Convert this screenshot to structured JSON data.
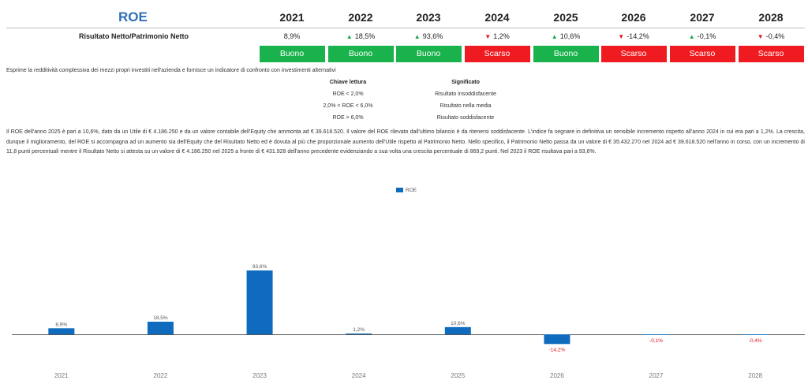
{
  "header": {
    "title": "ROE",
    "years": [
      "2021",
      "2022",
      "2023",
      "2024",
      "2025",
      "2026",
      "2027",
      "2028"
    ]
  },
  "metric": {
    "label": "Risultato Netto/Patrimonio Netto",
    "values": [
      {
        "text": "8,9%",
        "trend": "none"
      },
      {
        "text": "18,5%",
        "trend": "up"
      },
      {
        "text": "93,6%",
        "trend": "up"
      },
      {
        "text": "1,2%",
        "trend": "down"
      },
      {
        "text": "10,6%",
        "trend": "up"
      },
      {
        "text": "-14,2%",
        "trend": "down"
      },
      {
        "text": "-0,1%",
        "trend": "up"
      },
      {
        "text": "-0,4%",
        "trend": "down"
      }
    ],
    "ratings": [
      {
        "text": "Buono",
        "status": "good"
      },
      {
        "text": "Buono",
        "status": "good"
      },
      {
        "text": "Buono",
        "status": "good"
      },
      {
        "text": "Scarso",
        "status": "bad"
      },
      {
        "text": "Buono",
        "status": "good"
      },
      {
        "text": "Scarso",
        "status": "bad"
      },
      {
        "text": "Scarso",
        "status": "bad"
      },
      {
        "text": "Scarso",
        "status": "bad"
      }
    ]
  },
  "colors": {
    "title": "#2e6fb7",
    "good": "#19b24c",
    "bad": "#f01b21",
    "up_arrow": "#1aa64a",
    "down_arrow": "#e2131a",
    "bar": "#0f6bbd"
  },
  "description": "Esprime la redditività complessiva dei mezzi propri investiti nell'azienda e fornisce un indicatore di confronto con investimenti alternativi",
  "key_table": {
    "header_left": "Chiave lettura",
    "header_right": "Significato",
    "rows": [
      {
        "key": "ROE < 2,0%",
        "meaning": "Risultato insoddisfacente"
      },
      {
        "key": "2,0% < ROE < 6,0%",
        "meaning": "Risultato nella media"
      },
      {
        "key": "ROE > 6,0%",
        "meaning": "Risultato soddisfacente"
      }
    ]
  },
  "analysis": "Il ROE dell'anno 2025 è pari a 10,6%, dato da un Utile di € 4.186.250 e da un valore contabile dell'Equity che ammonta ad € 39.618.520. Il valore del ROE rilevato dall'ultimo bilancio è da ritenersi soddisfacente. L'indice fa segnare in definitiva un sensibile incremento rispetto all'anno 2024 in cui era pari a 1,2%. La crescita, dunque il miglioramento, del ROE si accompagna ad un aumento sia dell'Equity che del Risultato Netto ed è dovuta al più che proporzionale aumento dell'Utile rispetto al Patrimonio Netto. Nello specifico, il Patrimonio Netto passa da un valore di € 35.432.270 nel 2024 ad € 39.618.520 nell'anno in corso, con un incremento di 11,8 punti percentuali mentre il Risultato Netto si attesta su un valore di € 4.186.250 nel 2025 a fronte di € 431.928 dell'anno precedente evidenziando a sua volta una crescita percentuale di 869,2 punti. Nel 2023 il ROE risultava pari a 93,6%.",
  "chart_data": {
    "type": "bar",
    "categories": [
      "2021",
      "2022",
      "2023",
      "2024",
      "2025",
      "2026",
      "2027",
      "2028"
    ],
    "series": [
      {
        "name": "ROE",
        "values": [
          8.9,
          18.5,
          93.6,
          1.2,
          10.6,
          -14.2,
          -0.1,
          -0.4
        ]
      }
    ],
    "data_labels": [
      "8,9%",
      "18,5%",
      "93,6%",
      "1,2%",
      "10,6%",
      "-14,2%",
      "-0,1%",
      "-0,4%"
    ],
    "legend_position": "top-center",
    "grid": false
  }
}
